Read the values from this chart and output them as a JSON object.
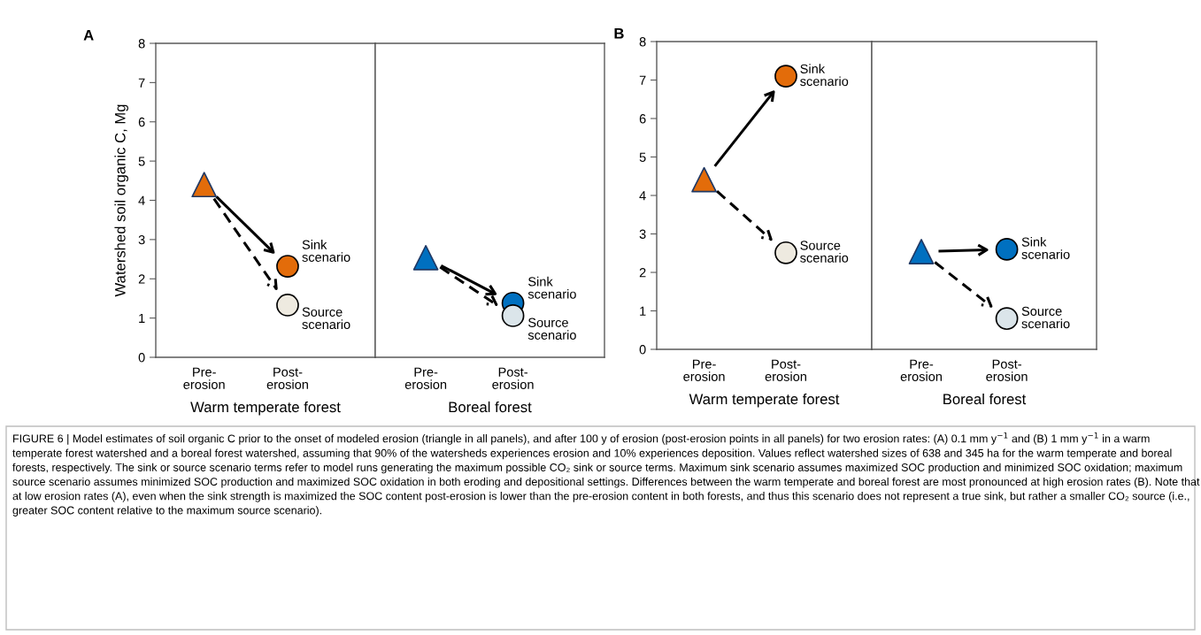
{
  "chart_data": [
    {
      "type": "scatter",
      "title": "A",
      "categories": [
        "Pre-\nerosion",
        "Post-\nerosion"
      ],
      "xlabel": "Warm temperate forest",
      "ylabel": "Watershed soil organic C, Mg",
      "ylim": [
        0,
        8
      ],
      "yticks": [
        0,
        1,
        2,
        3,
        4,
        5,
        6,
        7,
        8
      ],
      "series": [
        {
          "type": "scatter",
          "marker": "triangle",
          "color": "#e36c0a",
          "values": [
            4.4,
            null
          ]
        },
        {
          "name": "Sink\nscenario",
          "type": "scatter",
          "marker": "circle",
          "line_style": "solid",
          "color": "#e36c0a",
          "values": [
            null,
            2.32
          ]
        },
        {
          "name": "Source\nscenario",
          "type": "scatter",
          "marker": "circle",
          "line_style": "dashed",
          "color": "#eeeae0",
          "values": [
            null,
            1.33
          ]
        }
      ],
      "annotations": [
        "FIGURE 6 | Model estimates of soil organic C prior to the onset of modeled erosion (triangle in all panels), and after 100 y of erosion (post-erosion points in all panels) for two erosion rates: (A) 0.1 mm y$^{−1}$ and (B) 1 mm y$^{−1}$ in a warm temperate forest watershed and a boreal forest watershed, assuming that 90% of the watersheds experiences erosion and 10% experiences deposition. Values reflect watershed sizes of 638 and 345 ha for the warm temperate and boreal forests, respectively. The sink or source scenario terms refer to model runs generating the maximum possible CO₂ sink or source terms. Maximum sink scenario assumes maximized SOC production and minimized SOC oxidation; maximum source scenario assumes minimized SOC production and maximized SOC oxidation in both eroding and depositional settings. Differences between the warm temperate and boreal forest are most pronounced at high erosion rates (B). Note that at low erosion rates (A), even when the sink strength is maximized the SOC content post-erosion is lower than the pre-erosion content in both forests, and thus this scenario does not represent a true sink, but rather a smaller CO₂ source (i.e., greater SOC content relative to the maximum source scenario)."
      ]
    },
    {
      "type": "scatter",
      "categories": [
        "Pre-\nerosion",
        "Post-\nerosion"
      ],
      "xlabel": "Boreal forest",
      "ylim": [
        0,
        8
      ],
      "yticks": [
        0,
        1,
        2,
        3,
        4,
        5,
        6,
        7,
        8
      ],
      "tick_labels": "x",
      "series": [
        {
          "type": "scatter",
          "marker": "triangle",
          "color": "#0070c0",
          "values": [
            2.54,
            null
          ]
        },
        {
          "name": "Sink\nscenario",
          "type": "scatter",
          "marker": "circle",
          "line_style": "solid",
          "color": "#0070c0",
          "values": [
            null,
            1.38
          ]
        },
        {
          "name": "Source\nscenario",
          "type": "scatter",
          "marker": "circle",
          "line_style": "dashed",
          "color": "#dbe5ea",
          "values": [
            null,
            1.06
          ]
        }
      ]
    },
    {
      "type": "scatter",
      "title": "B",
      "categories": [
        "Pre-\nerosion",
        "Post-\nerosion"
      ],
      "xlabel": "Warm temperate forest",
      "ylim": [
        0,
        8
      ],
      "yticks": [
        0,
        1,
        2,
        3,
        4,
        5,
        6,
        7,
        8
      ],
      "series": [
        {
          "type": "scatter",
          "marker": "triangle",
          "color": "#e36c0a",
          "values": [
            4.41,
            null
          ]
        },
        {
          "name": "Sink\nscenario",
          "type": "scatter",
          "marker": "circle",
          "line_style": "solid",
          "color": "#e36c0a",
          "values": [
            null,
            7.1
          ]
        },
        {
          "name": "Source\nscenario",
          "type": "scatter",
          "marker": "circle",
          "line_style": "dashed",
          "color": "#eeeae0",
          "values": [
            null,
            2.51
          ]
        }
      ]
    },
    {
      "type": "scatter",
      "categories": [
        "Pre-\nerosion",
        "Post-\nerosion"
      ],
      "xlabel": "Boreal forest",
      "ylim": [
        0,
        8
      ],
      "yticks": [
        0,
        1,
        2,
        3,
        4,
        5,
        6,
        7,
        8
      ],
      "tick_labels": "x",
      "series": [
        {
          "type": "scatter",
          "marker": "triangle",
          "color": "#0070c0",
          "values": [
            2.54,
            null
          ]
        },
        {
          "name": "Sink\nscenario",
          "type": "scatter",
          "marker": "circle",
          "line_style": "solid",
          "color": "#0070c0",
          "values": [
            null,
            2.6
          ]
        },
        {
          "name": "Source\nscenario",
          "type": "scatter",
          "marker": "circle",
          "line_style": "dashed",
          "color": "#dbe5ea",
          "values": [
            null,
            0.8
          ]
        }
      ]
    }
  ]
}
